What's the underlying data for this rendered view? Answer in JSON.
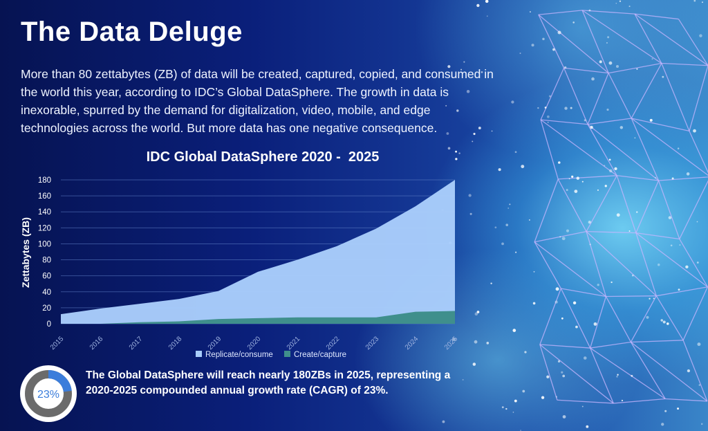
{
  "page": {
    "title": "The Data Deluge",
    "intro": "More than 80 zettabytes (ZB) of data will be created, captured, copied, and consumed in the world this year, according to IDC’s Global DataSphere. The growth in data is inexorable, spurred by the demand for digitalization, video, mobile, and edge technologies across the world. But more data has one negative consequence.",
    "footer_text": "The Global DataSphere will reach nearly 180ZBs in 2025, representing a 2020-2025 compounded annual growth rate (CAGR) of 23%."
  },
  "kpi": {
    "label": "23%",
    "value": 0.23
  },
  "colors": {
    "replicate": "#a9cdfb",
    "create": "#3f8f8c",
    "ring_fill": "#3b7ddb",
    "ring_track": "#6b6b6b"
  },
  "chart_data": {
    "type": "area",
    "title": "IDC Global DataSphere 2020 -  2025",
    "xlabel": "",
    "ylabel": "Zettabytes (ZB)",
    "ylim": [
      0,
      180
    ],
    "yticks": [
      0,
      20,
      40,
      60,
      80,
      100,
      120,
      140,
      160,
      180
    ],
    "categories": [
      "2015",
      "2016",
      "2017",
      "2018",
      "2019",
      "2020",
      "2021",
      "2022",
      "2023",
      "2024",
      "2025"
    ],
    "stacked": false,
    "legend_position": "bottom",
    "series": [
      {
        "name": "Replicate/consume",
        "values": [
          12,
          19,
          25,
          31,
          41,
          65,
          80,
          97,
          119,
          147,
          180
        ]
      },
      {
        "name": "Create/capture",
        "values": [
          0,
          0,
          2,
          3,
          6,
          7,
          8,
          8,
          8,
          15,
          16
        ]
      }
    ]
  }
}
